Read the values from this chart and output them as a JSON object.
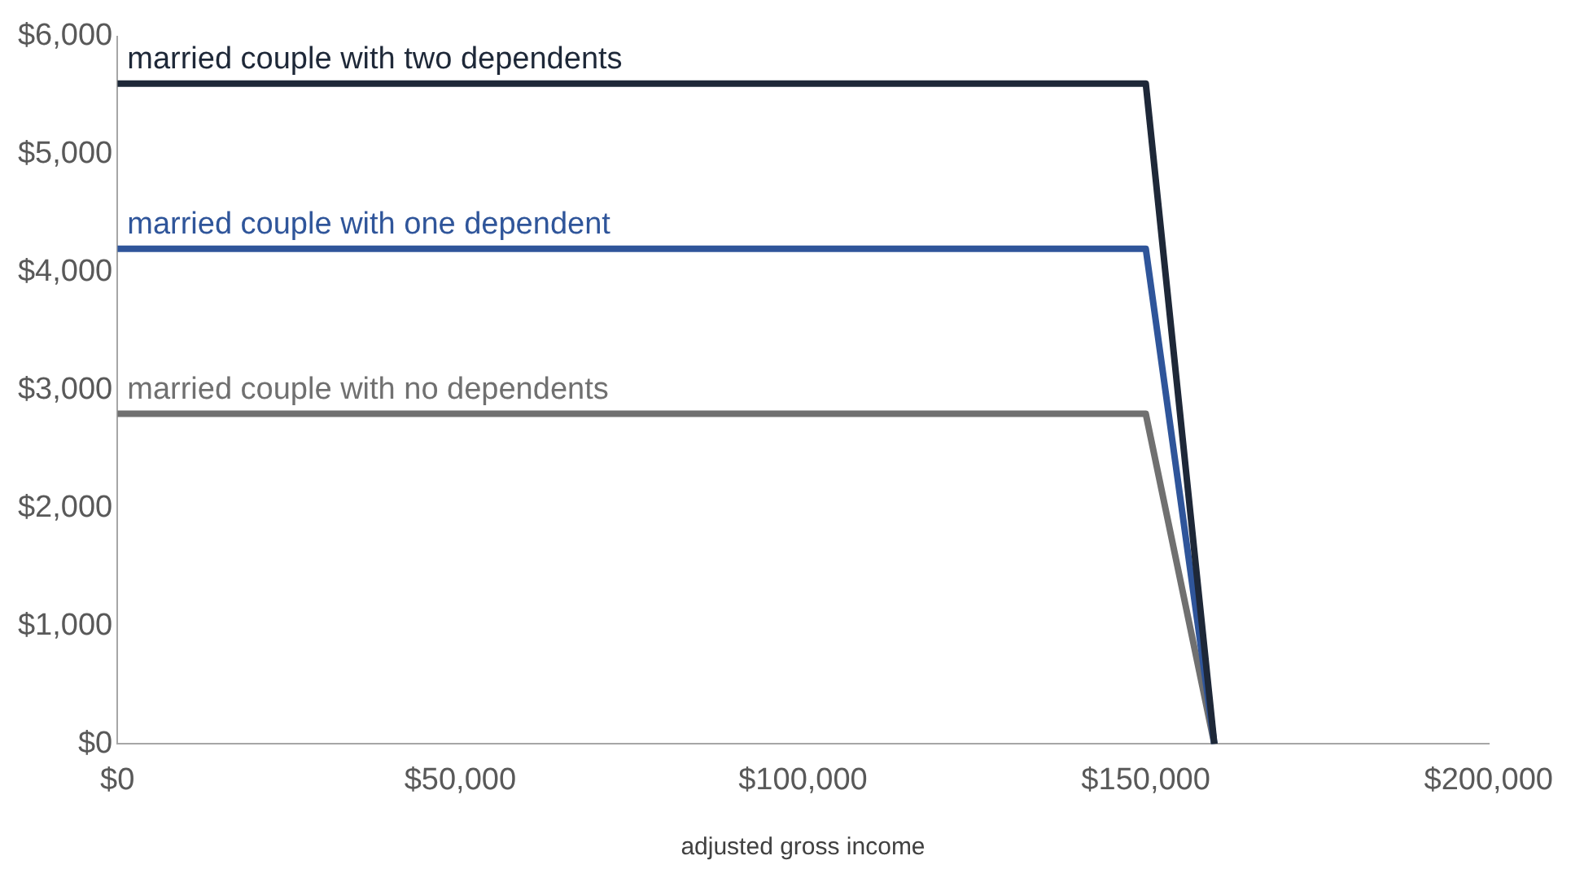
{
  "chart_data": {
    "type": "line",
    "xlabel": "adjusted gross income",
    "x": [
      0,
      150000,
      160000
    ],
    "xlim": [
      0,
      200000
    ],
    "xticks": [
      {
        "value": 0,
        "label": "$0"
      },
      {
        "value": 50000,
        "label": "$50,000"
      },
      {
        "value": 100000,
        "label": "$100,000"
      },
      {
        "value": 150000,
        "label": "$150,000"
      },
      {
        "value": 200000,
        "label": "$200,000"
      }
    ],
    "ylim": [
      0,
      6000
    ],
    "yticks": [
      {
        "value": 0,
        "label": "$0"
      },
      {
        "value": 1000,
        "label": "$1,000"
      },
      {
        "value": 2000,
        "label": "$2,000"
      },
      {
        "value": 3000,
        "label": "$3,000"
      },
      {
        "value": 4000,
        "label": "$4,000"
      },
      {
        "value": 5000,
        "label": "$5,000"
      },
      {
        "value": 6000,
        "label": "$6,000"
      }
    ],
    "grid": false,
    "legend": false,
    "marker": "none",
    "line_style": "solid",
    "series": [
      {
        "name": "married couple with two dependents",
        "color": "#1e2838",
        "values": [
          5600,
          5600,
          0
        ]
      },
      {
        "name": "married couple with one dependent",
        "color": "#2f559a",
        "values": [
          4200,
          4200,
          0
        ]
      },
      {
        "name": "married couple with no dependents",
        "color": "#707070",
        "values": [
          2800,
          2800,
          0
        ]
      }
    ]
  }
}
